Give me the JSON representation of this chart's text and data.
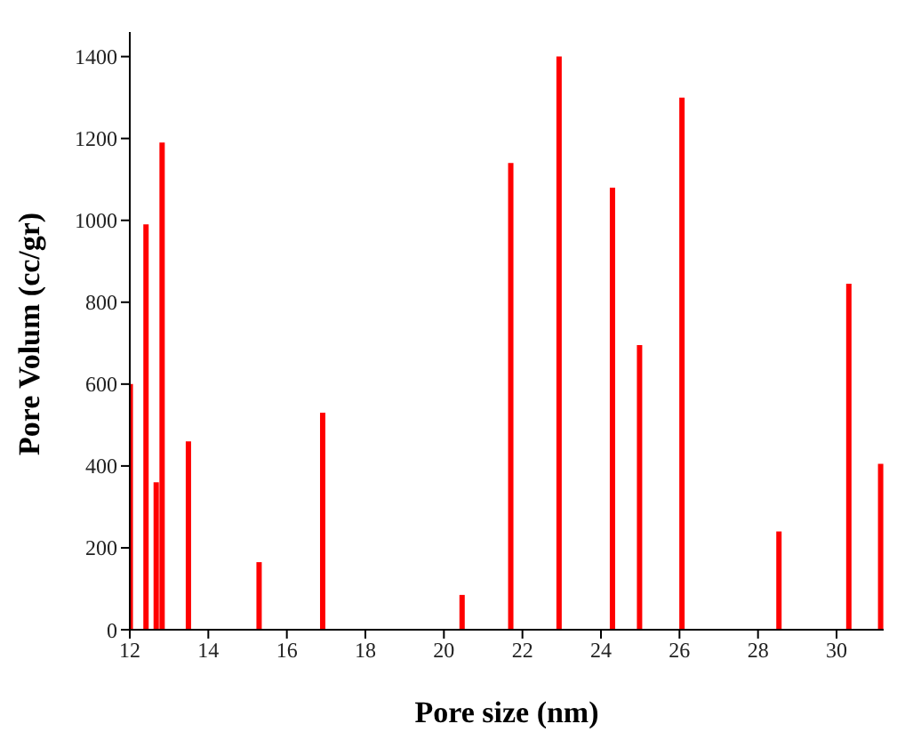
{
  "chart_data": {
    "type": "bar",
    "xlabel": "Pore size (nm)",
    "ylabel": "Pore Volum (cc/gr)",
    "x": [
      12.02,
      12.42,
      12.68,
      12.83,
      13.5,
      15.3,
      16.92,
      20.47,
      21.71,
      22.94,
      24.3,
      24.99,
      26.07,
      28.54,
      30.32,
      31.13
    ],
    "values": [
      600,
      990,
      360,
      1190,
      460,
      165,
      530,
      85,
      1140,
      1400,
      1080,
      695,
      1300,
      240,
      845,
      405
    ],
    "color": "#ff0000",
    "xlim": [
      12,
      31.2
    ],
    "xticks": [
      12,
      14,
      16,
      18,
      20,
      22,
      24,
      26,
      28,
      30
    ],
    "ylim": [
      0,
      1460
    ],
    "yticks": [
      0,
      200,
      400,
      600,
      800,
      1000,
      1200,
      1400
    ],
    "grid": false,
    "legend": false
  }
}
